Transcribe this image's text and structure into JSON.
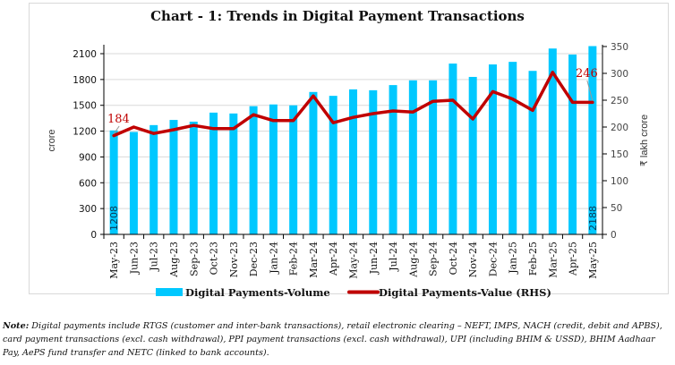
{
  "chart_data": {
    "type": "bar+line",
    "title": "Chart - 1: Trends in Digital Payment Transactions",
    "categories": [
      "May-23",
      "Jun-23",
      "Jul-23",
      "Aug-23",
      "Sep-23",
      "Oct-23",
      "Nov-23",
      "Dec-23",
      "Jan-24",
      "Feb-24",
      "Mar-24",
      "Apr-24",
      "May-24",
      "Jun-24",
      "Jul-24",
      "Aug-24",
      "Sep-24",
      "Oct-24",
      "Nov-24",
      "Dec-24",
      "Jan-25",
      "Feb-25",
      "Mar-25",
      "Apr-25",
      "May-25"
    ],
    "series": [
      {
        "name": "Digital Payments-Volume",
        "type": "bar",
        "axis": "left",
        "color": "#00c8ff",
        "values": [
          1208,
          1190,
          1270,
          1330,
          1310,
          1415,
          1405,
          1490,
          1510,
          1500,
          1655,
          1610,
          1685,
          1675,
          1735,
          1790,
          1790,
          1985,
          1830,
          1975,
          2005,
          1900,
          2160,
          2090,
          2188
        ],
        "data_labels": {
          "first": "1208",
          "last": "2188"
        }
      },
      {
        "name": "Digital Payments-Value (RHS)",
        "type": "line",
        "axis": "right",
        "color": "#c00000",
        "values": [
          184,
          200,
          188,
          195,
          203,
          197,
          197,
          223,
          212,
          212,
          258,
          208,
          218,
          225,
          230,
          228,
          248,
          250,
          215,
          266,
          252,
          231,
          302,
          246,
          246
        ],
        "data_labels": {
          "first": "184",
          "last": "246"
        }
      }
    ],
    "ylabel": "crore",
    "ylabel_right": "₹ lakh crore",
    "yticks": [
      "0",
      "300",
      "600",
      "900",
      "1200",
      "1500",
      "1800",
      "2100"
    ],
    "yticks_right": [
      "0",
      "50",
      "100",
      "150",
      "200",
      "250",
      "300",
      "350"
    ],
    "ylim": [
      0,
      2100
    ],
    "ylim_right": [
      0,
      350
    ],
    "grid": true,
    "legend_position": "bottom"
  },
  "note": {
    "label": "Note:",
    "text": " Digital payments include RTGS (customer and inter-bank transactions), retail electronic clearing – NEFT, IMPS, NACH (credit, debit and APBS), card payment transactions (excl. cash withdrawal), PPI payment transactions (excl. cash withdrawal), UPI (including BHIM & USSD), BHIM Aadhaar Pay, AePS fund transfer and NETC (linked to bank accounts)."
  }
}
